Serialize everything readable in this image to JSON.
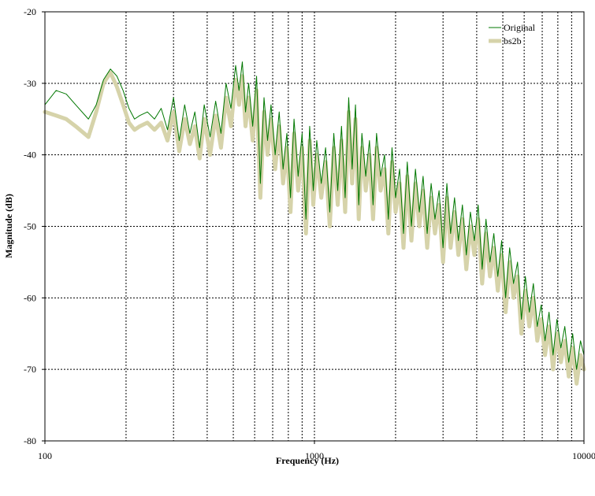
{
  "chart_data": {
    "type": "line",
    "title": "",
    "xlabel": "Frequency (Hz)",
    "ylabel": "Magnitude (dB)",
    "x_scale": "log",
    "xlim": [
      100,
      10000
    ],
    "ylim": [
      -80,
      -20
    ],
    "x_ticks": [
      100,
      1000,
      10000
    ],
    "x_tick_labels": [
      "100",
      "1000",
      "10000"
    ],
    "y_ticks": [
      -20,
      -30,
      -40,
      -50,
      -60,
      -70,
      -80
    ],
    "y_tick_labels": [
      "-20",
      "-30",
      "-40",
      "-50",
      "-60",
      "-70",
      "-80"
    ],
    "grid": true,
    "legend_position": "top-right",
    "series": [
      {
        "name": "Original",
        "color": "#007700",
        "points": [
          [
            100,
            -33
          ],
          [
            110,
            -31
          ],
          [
            120,
            -31.5
          ],
          [
            130,
            -33
          ],
          [
            145,
            -35
          ],
          [
            155,
            -33
          ],
          [
            165,
            -29.5
          ],
          [
            175,
            -28
          ],
          [
            185,
            -29
          ],
          [
            195,
            -31
          ],
          [
            205,
            -33.5
          ],
          [
            215,
            -35
          ],
          [
            225,
            -34.5
          ],
          [
            240,
            -34
          ],
          [
            255,
            -35
          ],
          [
            270,
            -33.5
          ],
          [
            285,
            -36.5
          ],
          [
            300,
            -32
          ],
          [
            315,
            -38
          ],
          [
            330,
            -33
          ],
          [
            345,
            -37
          ],
          [
            360,
            -34
          ],
          [
            375,
            -39
          ],
          [
            390,
            -33
          ],
          [
            410,
            -37.5
          ],
          [
            430,
            -32.5
          ],
          [
            450,
            -37
          ],
          [
            470,
            -30
          ],
          [
            490,
            -33.5
          ],
          [
            510,
            -27.5
          ],
          [
            525,
            -31
          ],
          [
            540,
            -27
          ],
          [
            555,
            -34
          ],
          [
            570,
            -30
          ],
          [
            590,
            -36
          ],
          [
            610,
            -29
          ],
          [
            630,
            -44
          ],
          [
            650,
            -32
          ],
          [
            670,
            -38
          ],
          [
            690,
            -33
          ],
          [
            715,
            -40
          ],
          [
            740,
            -34
          ],
          [
            765,
            -42
          ],
          [
            790,
            -37
          ],
          [
            815,
            -46
          ],
          [
            840,
            -35
          ],
          [
            870,
            -43
          ],
          [
            900,
            -37
          ],
          [
            930,
            -49
          ],
          [
            960,
            -36
          ],
          [
            990,
            -45
          ],
          [
            1020,
            -38
          ],
          [
            1060,
            -44
          ],
          [
            1100,
            -39
          ],
          [
            1140,
            -48
          ],
          [
            1180,
            -37
          ],
          [
            1220,
            -45
          ],
          [
            1260,
            -36
          ],
          [
            1300,
            -46
          ],
          [
            1340,
            -32
          ],
          [
            1380,
            -42
          ],
          [
            1420,
            -33
          ],
          [
            1460,
            -47
          ],
          [
            1500,
            -37
          ],
          [
            1550,
            -43
          ],
          [
            1600,
            -38
          ],
          [
            1650,
            -47
          ],
          [
            1700,
            -37
          ],
          [
            1760,
            -43
          ],
          [
            1820,
            -40
          ],
          [
            1880,
            -49
          ],
          [
            1940,
            -39
          ],
          [
            2000,
            -46
          ],
          [
            2070,
            -42
          ],
          [
            2140,
            -51
          ],
          [
            2210,
            -41
          ],
          [
            2290,
            -50
          ],
          [
            2370,
            -42
          ],
          [
            2450,
            -48
          ],
          [
            2530,
            -43
          ],
          [
            2620,
            -51
          ],
          [
            2710,
            -44
          ],
          [
            2800,
            -49
          ],
          [
            2900,
            -45
          ],
          [
            3000,
            -53
          ],
          [
            3100,
            -44
          ],
          [
            3200,
            -51
          ],
          [
            3310,
            -46
          ],
          [
            3420,
            -52
          ],
          [
            3540,
            -47
          ],
          [
            3660,
            -54
          ],
          [
            3790,
            -48
          ],
          [
            3920,
            -52
          ],
          [
            4050,
            -47
          ],
          [
            4190,
            -56
          ],
          [
            4330,
            -49
          ],
          [
            4480,
            -55
          ],
          [
            4630,
            -51
          ],
          [
            4790,
            -57
          ],
          [
            4950,
            -52
          ],
          [
            5120,
            -60
          ],
          [
            5300,
            -53
          ],
          [
            5480,
            -58
          ],
          [
            5670,
            -55
          ],
          [
            5860,
            -63
          ],
          [
            6060,
            -57
          ],
          [
            6270,
            -62
          ],
          [
            6490,
            -58
          ],
          [
            6710,
            -64
          ],
          [
            6940,
            -61
          ],
          [
            7170,
            -66
          ],
          [
            7420,
            -62
          ],
          [
            7680,
            -68
          ],
          [
            7940,
            -63
          ],
          [
            8210,
            -67
          ],
          [
            8490,
            -64
          ],
          [
            8780,
            -69
          ],
          [
            9080,
            -65
          ],
          [
            9390,
            -70
          ],
          [
            9710,
            -66
          ],
          [
            10000,
            -68
          ]
        ]
      },
      {
        "name": "bs2b",
        "color": "#d6d3aa",
        "points": [
          [
            100,
            -34
          ],
          [
            110,
            -34.5
          ],
          [
            120,
            -35
          ],
          [
            130,
            -36
          ],
          [
            145,
            -37.5
          ],
          [
            155,
            -34
          ],
          [
            165,
            -30
          ],
          [
            175,
            -28.5
          ],
          [
            185,
            -30.5
          ],
          [
            195,
            -33
          ],
          [
            205,
            -35.5
          ],
          [
            215,
            -36.5
          ],
          [
            225,
            -36
          ],
          [
            240,
            -35.5
          ],
          [
            255,
            -36.5
          ],
          [
            270,
            -35.5
          ],
          [
            285,
            -38
          ],
          [
            300,
            -34
          ],
          [
            315,
            -39.5
          ],
          [
            330,
            -35
          ],
          [
            345,
            -38.5
          ],
          [
            360,
            -36
          ],
          [
            375,
            -40.5
          ],
          [
            390,
            -35
          ],
          [
            410,
            -40
          ],
          [
            430,
            -34.5
          ],
          [
            450,
            -39
          ],
          [
            470,
            -32
          ],
          [
            490,
            -36
          ],
          [
            510,
            -29.5
          ],
          [
            525,
            -33
          ],
          [
            540,
            -29
          ],
          [
            555,
            -36
          ],
          [
            570,
            -32
          ],
          [
            590,
            -38
          ],
          [
            610,
            -31
          ],
          [
            630,
            -46
          ],
          [
            650,
            -34
          ],
          [
            670,
            -40
          ],
          [
            690,
            -35
          ],
          [
            715,
            -42
          ],
          [
            740,
            -36
          ],
          [
            765,
            -44
          ],
          [
            790,
            -39
          ],
          [
            815,
            -48
          ],
          [
            840,
            -37
          ],
          [
            870,
            -45
          ],
          [
            900,
            -39
          ],
          [
            930,
            -51
          ],
          [
            960,
            -38
          ],
          [
            990,
            -47
          ],
          [
            1020,
            -40
          ],
          [
            1060,
            -46
          ],
          [
            1100,
            -41
          ],
          [
            1140,
            -50
          ],
          [
            1180,
            -39
          ],
          [
            1220,
            -47
          ],
          [
            1260,
            -38
          ],
          [
            1300,
            -48
          ],
          [
            1340,
            -34
          ],
          [
            1380,
            -44
          ],
          [
            1420,
            -35
          ],
          [
            1460,
            -49
          ],
          [
            1500,
            -39
          ],
          [
            1550,
            -45
          ],
          [
            1600,
            -40
          ],
          [
            1650,
            -49
          ],
          [
            1700,
            -39
          ],
          [
            1760,
            -45
          ],
          [
            1820,
            -42
          ],
          [
            1880,
            -51
          ],
          [
            1940,
            -41
          ],
          [
            2000,
            -48
          ],
          [
            2070,
            -44
          ],
          [
            2140,
            -53
          ],
          [
            2210,
            -43
          ],
          [
            2290,
            -52
          ],
          [
            2370,
            -44
          ],
          [
            2450,
            -50
          ],
          [
            2530,
            -45
          ],
          [
            2620,
            -53
          ],
          [
            2710,
            -46
          ],
          [
            2800,
            -51
          ],
          [
            2900,
            -47
          ],
          [
            3000,
            -55
          ],
          [
            3100,
            -46
          ],
          [
            3200,
            -53
          ],
          [
            3310,
            -48
          ],
          [
            3420,
            -54
          ],
          [
            3540,
            -49
          ],
          [
            3660,
            -56
          ],
          [
            3790,
            -50
          ],
          [
            3920,
            -54
          ],
          [
            4050,
            -49
          ],
          [
            4190,
            -58
          ],
          [
            4330,
            -51
          ],
          [
            4480,
            -57
          ],
          [
            4630,
            -53
          ],
          [
            4790,
            -59
          ],
          [
            4950,
            -54
          ],
          [
            5120,
            -62
          ],
          [
            5300,
            -55
          ],
          [
            5480,
            -60
          ],
          [
            5670,
            -57
          ],
          [
            5860,
            -65
          ],
          [
            6060,
            -59
          ],
          [
            6270,
            -64
          ],
          [
            6490,
            -60
          ],
          [
            6710,
            -66
          ],
          [
            6940,
            -63
          ],
          [
            7170,
            -68
          ],
          [
            7420,
            -64
          ],
          [
            7680,
            -70
          ],
          [
            7940,
            -65
          ],
          [
            8210,
            -69
          ],
          [
            8490,
            -66
          ],
          [
            8780,
            -71
          ],
          [
            9080,
            -67
          ],
          [
            9390,
            -72
          ],
          [
            9710,
            -68
          ],
          [
            10000,
            -70
          ]
        ]
      }
    ]
  }
}
